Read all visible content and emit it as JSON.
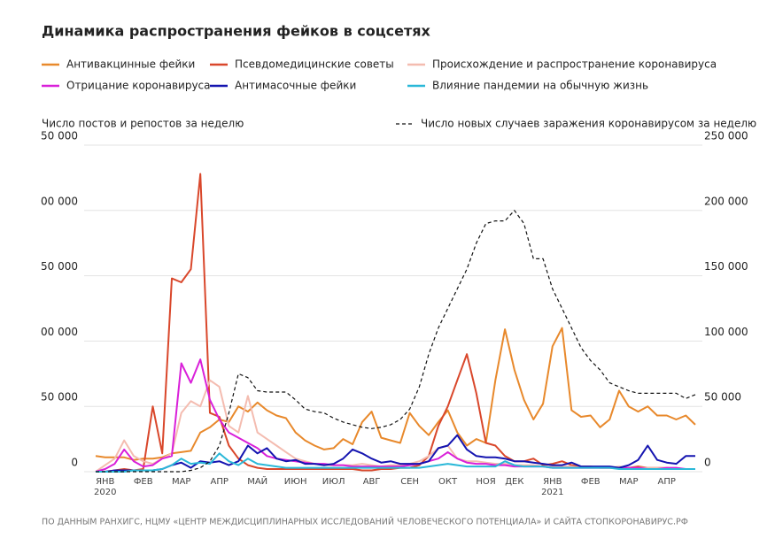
{
  "chart_data": {
    "type": "line",
    "title": "Динамика распространения фейков в соцсетях",
    "y_label": "Число постов и репостов за неделю",
    "source": "ПО ДАННЫМ РАНХИГС, НЦМУ «ЦЕНТР МЕЖДИСЦИПЛИНАРНЫХ ИССЛЕДОВАНИЙ ЧЕЛОВЕЧЕСКОГО ПОТЕНЦИАЛА» И САЙТА СТОПКОРОНАВИРУС.РФ",
    "grid": true,
    "ylim": [
      0,
      250000
    ],
    "yticks": [
      0,
      {
        "value": 50000,
        "label": "50 000"
      },
      {
        "value": 100000,
        "label": "00 000"
      },
      {
        "value": 150000,
        "label": "50 000"
      },
      {
        "value": 200000,
        "label": "00 000"
      },
      {
        "value": 250000,
        "label": "50 000"
      }
    ],
    "y2lim": [
      0,
      250000
    ],
    "y2ticks": [
      0,
      {
        "value": 50000,
        "label": "50 000"
      },
      {
        "value": 100000,
        "label": "100 000"
      },
      {
        "value": 150000,
        "label": "150 000"
      },
      {
        "value": 200000,
        "label": "200 000"
      },
      {
        "value": 250000,
        "label": "250 000"
      }
    ],
    "categories": [
      null,
      "ЯНВ 2020",
      null,
      null,
      null,
      "ФЕВ",
      null,
      null,
      null,
      "МАР",
      null,
      null,
      null,
      "АПР",
      null,
      null,
      null,
      "МАЙ",
      null,
      null,
      null,
      "ИЮН",
      null,
      null,
      null,
      "ИЮЛ",
      null,
      null,
      null,
      "АВГ",
      null,
      null,
      null,
      "СЕН",
      null,
      null,
      null,
      "ОКТ",
      null,
      null,
      null,
      "НОЯ",
      null,
      null,
      "ДЕК",
      null,
      null,
      null,
      "ЯНВ 2021",
      null,
      null,
      null,
      "ФЕВ",
      null,
      null,
      null,
      "МАР",
      null,
      null,
      null,
      "АПР",
      null,
      null,
      null
    ],
    "series": [
      {
        "name": "Антивакцинные фейки",
        "color": "#e8892c",
        "values": [
          12000,
          11000,
          11000,
          11000,
          9000,
          10000,
          10000,
          11000,
          14000,
          15000,
          16000,
          30000,
          34000,
          40000,
          38000,
          50000,
          46000,
          53000,
          47000,
          43000,
          41000,
          30000,
          24000,
          20000,
          17000,
          18000,
          25000,
          21000,
          38000,
          46000,
          26000,
          24000,
          22000,
          45000,
          35000,
          28000,
          38000,
          47000,
          30000,
          20000,
          25000,
          22000,
          70000,
          109000,
          78000,
          55000,
          40000,
          52000,
          96000,
          110000,
          47000,
          42000,
          43000,
          34000,
          40000,
          62000,
          50000,
          46000,
          50000,
          43000,
          43000,
          40000,
          43000,
          36000
        ]
      },
      {
        "name": "Псевдомедицинские советы",
        "color": "#d9472b",
        "values": [
          0,
          0,
          1000,
          2000,
          1000,
          2000,
          50000,
          14000,
          148000,
          145000,
          155000,
          228000,
          45000,
          42000,
          20000,
          10000,
          5000,
          3000,
          2000,
          2000,
          2000,
          2000,
          2000,
          2000,
          2000,
          2000,
          2000,
          2000,
          1000,
          1000,
          2000,
          2000,
          3000,
          3000,
          5000,
          12000,
          35000,
          50000,
          70000,
          90000,
          60000,
          22000,
          20000,
          12000,
          8000,
          8000,
          10000,
          5000,
          6000,
          8000,
          5000,
          4000,
          4000,
          3000,
          3000,
          3000,
          3000,
          4000,
          3000,
          3000,
          3000,
          2000,
          2000,
          2000
        ]
      },
      {
        "name": "Происхождение и распространение коронавируса",
        "color": "#f4bcb0",
        "values": [
          0,
          5000,
          10000,
          24000,
          12000,
          8000,
          6000,
          10000,
          14000,
          45000,
          54000,
          50000,
          70000,
          65000,
          35000,
          30000,
          58000,
          30000,
          25000,
          20000,
          15000,
          10000,
          8000,
          6000,
          5000,
          5000,
          5000,
          5000,
          6000,
          5000,
          4000,
          5000,
          5000,
          6000,
          8000,
          12000,
          18000,
          20000,
          10000,
          8000,
          8000,
          7000,
          6000,
          6000,
          5000,
          5000,
          5000,
          4000,
          4000,
          4000,
          4000,
          3000,
          3000,
          3000,
          3000,
          4000,
          3000,
          3000,
          3000,
          3000,
          3000,
          2000,
          2000,
          2000
        ]
      },
      {
        "name": "Отрицание коронавируса",
        "color": "#d920d9",
        "values": [
          0,
          2000,
          6000,
          17000,
          8000,
          4000,
          5000,
          10000,
          12000,
          83000,
          68000,
          86000,
          55000,
          40000,
          30000,
          26000,
          22000,
          18000,
          12000,
          10000,
          9000,
          8000,
          7000,
          6000,
          6000,
          5000,
          5000,
          4000,
          4000,
          4000,
          4000,
          4000,
          4000,
          5000,
          6000,
          8000,
          10000,
          15000,
          10000,
          7000,
          6000,
          6000,
          5000,
          5000,
          4000,
          4000,
          4000,
          4000,
          3000,
          3000,
          3000,
          3000,
          3000,
          3000,
          3000,
          3000,
          3000,
          3000,
          2000,
          2000,
          3000,
          3000,
          2000,
          2000
        ]
      },
      {
        "name": "Антимасочные фейки",
        "color": "#1414b0",
        "values": [
          0,
          0,
          1000,
          1000,
          1000,
          1000,
          1000,
          2000,
          5000,
          7000,
          3000,
          8000,
          7000,
          8000,
          5000,
          8000,
          20000,
          14000,
          18000,
          10000,
          8000,
          9000,
          6000,
          6000,
          5000,
          6000,
          10000,
          17000,
          14000,
          10000,
          7000,
          8000,
          6000,
          6000,
          6000,
          8000,
          18000,
          20000,
          28000,
          17000,
          12000,
          11000,
          11000,
          10000,
          8000,
          8000,
          7000,
          6000,
          5000,
          5000,
          7000,
          4000,
          4000,
          4000,
          4000,
          3000,
          5000,
          9000,
          20000,
          9000,
          7000,
          6000,
          12000,
          12000
        ]
      },
      {
        "name": "Влияние пандемии на обычную жизнь",
        "color": "#2ab8d8",
        "values": [
          0,
          0,
          0,
          0,
          1000,
          1000,
          1000,
          2000,
          5000,
          10000,
          6000,
          7000,
          6000,
          14000,
          8000,
          5000,
          10000,
          6000,
          5000,
          4000,
          3000,
          3000,
          3000,
          3000,
          3000,
          3000,
          3000,
          3000,
          3000,
          3000,
          3000,
          3000,
          3000,
          3000,
          3000,
          4000,
          5000,
          6000,
          5000,
          4000,
          4000,
          4000,
          4000,
          8000,
          5000,
          4000,
          4000,
          4000,
          3000,
          3000,
          3000,
          3000,
          3000,
          3000,
          3000,
          2000,
          2000,
          2000,
          2000,
          2000,
          2000,
          2000,
          2000,
          2000
        ]
      },
      {
        "name": "Число новых случаев заражения коронавирусом за неделю",
        "color": "#111111",
        "dashed": true,
        "axis": "y2",
        "values": [
          0,
          0,
          0,
          0,
          0,
          0,
          0,
          0,
          0,
          0,
          1000,
          3000,
          8000,
          20000,
          45000,
          75000,
          72000,
          62000,
          61000,
          61000,
          61000,
          55000,
          48000,
          46000,
          45000,
          41000,
          38000,
          36000,
          34000,
          33000,
          34000,
          36000,
          40000,
          48000,
          65000,
          90000,
          110000,
          125000,
          140000,
          155000,
          175000,
          190000,
          192000,
          192000,
          200000,
          190000,
          163000,
          163000,
          140000,
          125000,
          110000,
          95000,
          85000,
          78000,
          68000,
          65000,
          62000,
          60000,
          60000,
          60000,
          60000,
          60000,
          56000,
          59000
        ]
      }
    ]
  }
}
